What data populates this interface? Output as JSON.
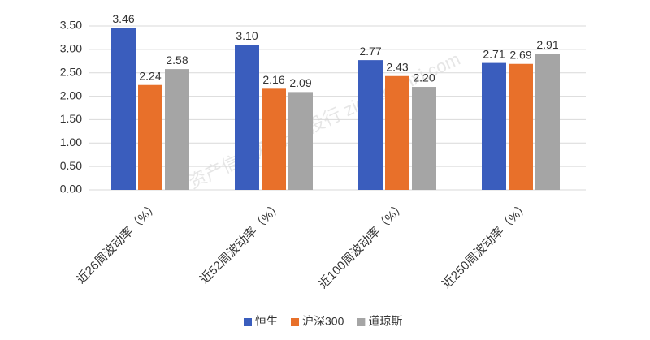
{
  "chart_data": {
    "type": "bar",
    "categories": [
      "近26周波动率（%）",
      "近52周波动率（%）",
      "近100周波动率（%）",
      "近250周波动率（%）"
    ],
    "series": [
      {
        "name": "恒生",
        "color": "#3a5dbd",
        "values": [
          3.46,
          3.1,
          2.77,
          2.71
        ],
        "value_labels": [
          "3.46",
          "3.10",
          "2.77",
          "2.71"
        ]
      },
      {
        "name": "沪深300",
        "color": "#e8702a",
        "values": [
          2.24,
          2.16,
          2.43,
          2.69
        ],
        "value_labels": [
          "2.24",
          "2.16",
          "2.43",
          "2.69"
        ]
      },
      {
        "name": "道琼斯",
        "color": "#a5a5a5",
        "values": [
          2.58,
          2.09,
          2.2,
          2.91
        ],
        "value_labels": [
          "2.58",
          "2.09",
          "2.20",
          "2.91"
        ]
      }
    ],
    "ylim": [
      0,
      3.5
    ],
    "yticks": [
      {
        "value": 0,
        "label": "0.00"
      },
      {
        "value": 0.5,
        "label": "0.50"
      },
      {
        "value": 1,
        "label": "1.00"
      },
      {
        "value": 1.5,
        "label": "1.50"
      },
      {
        "value": 2,
        "label": "2.00"
      },
      {
        "value": 2.5,
        "label": "2.50"
      },
      {
        "value": 3,
        "label": "3.00"
      },
      {
        "value": 3.5,
        "label": "3.50"
      }
    ],
    "grid": true,
    "legend": "bottom",
    "watermark": "资产信息网 千际投行 zichanxinxi.com"
  }
}
